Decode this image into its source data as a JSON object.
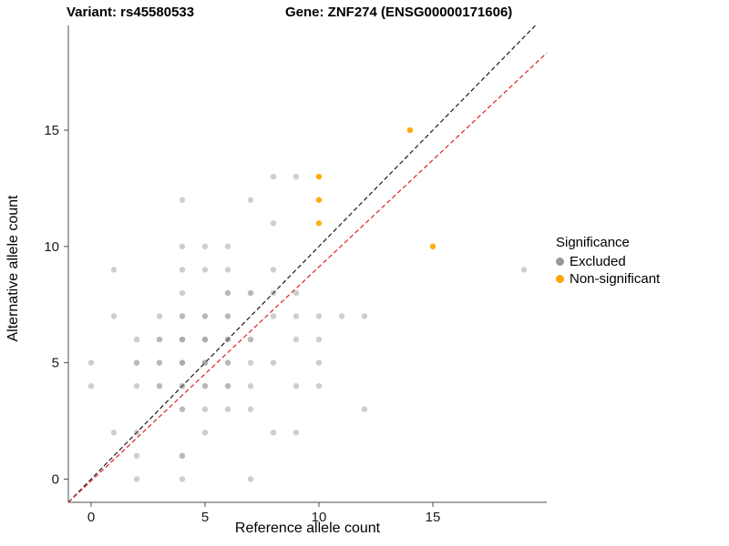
{
  "header": {
    "variant_title": "Variant: rs45580533",
    "gene_title": "Gene: ZNF274 (ENSG00000171606)"
  },
  "axes": {
    "x_label": "Reference allele count",
    "y_label": "Alternative allele count"
  },
  "legend": {
    "title": "Significance",
    "items": [
      {
        "label": "Excluded",
        "color": "#999999"
      },
      {
        "label": "Non-significant",
        "color": "#FFA500"
      }
    ]
  },
  "chart_data": {
    "type": "scatter",
    "title": "",
    "xlabel": "Reference allele count",
    "ylabel": "Alternative allele count",
    "xlim": [
      -1,
      20
    ],
    "ylim": [
      -1,
      19.5
    ],
    "x_ticks": [
      0,
      5,
      10,
      15
    ],
    "y_ticks": [
      0,
      5,
      10,
      15
    ],
    "grid": false,
    "legend_position": "right",
    "series": [
      {
        "name": "Excluded",
        "color": "#737373",
        "points": [
          [
            2,
            0,
            0.35
          ],
          [
            4,
            0,
            0.35
          ],
          [
            7,
            0,
            0.35
          ],
          [
            2,
            1,
            0.35
          ],
          [
            4,
            1,
            0.5
          ],
          [
            1,
            2,
            0.35
          ],
          [
            2,
            2,
            0.35
          ],
          [
            5,
            2,
            0.35
          ],
          [
            8,
            2,
            0.35
          ],
          [
            9,
            2,
            0.35
          ],
          [
            4,
            3,
            0.5
          ],
          [
            5,
            3,
            0.35
          ],
          [
            6,
            3,
            0.35
          ],
          [
            7,
            3,
            0.35
          ],
          [
            12,
            3,
            0.35
          ],
          [
            0,
            4,
            0.35
          ],
          [
            2,
            4,
            0.35
          ],
          [
            3,
            4,
            0.5
          ],
          [
            4,
            4,
            0.5
          ],
          [
            5,
            4,
            0.5
          ],
          [
            6,
            4,
            0.5
          ],
          [
            7,
            4,
            0.35
          ],
          [
            9,
            4,
            0.35
          ],
          [
            10,
            4,
            0.35
          ],
          [
            0,
            5,
            0.35
          ],
          [
            2,
            5,
            0.5
          ],
          [
            3,
            5,
            0.5
          ],
          [
            4,
            5,
            0.6
          ],
          [
            5,
            5,
            0.6
          ],
          [
            6,
            5,
            0.5
          ],
          [
            7,
            5,
            0.35
          ],
          [
            8,
            5,
            0.35
          ],
          [
            10,
            5,
            0.35
          ],
          [
            2,
            6,
            0.35
          ],
          [
            3,
            6,
            0.5
          ],
          [
            4,
            6,
            0.6
          ],
          [
            5,
            6,
            0.6
          ],
          [
            6,
            6,
            0.6
          ],
          [
            7,
            6,
            0.5
          ],
          [
            9,
            6,
            0.35
          ],
          [
            10,
            6,
            0.35
          ],
          [
            1,
            7,
            0.35
          ],
          [
            3,
            7,
            0.35
          ],
          [
            4,
            7,
            0.5
          ],
          [
            5,
            7,
            0.5
          ],
          [
            6,
            7,
            0.5
          ],
          [
            8,
            7,
            0.35
          ],
          [
            9,
            7,
            0.35
          ],
          [
            10,
            7,
            0.35
          ],
          [
            11,
            7,
            0.35
          ],
          [
            12,
            7,
            0.35
          ],
          [
            4,
            8,
            0.35
          ],
          [
            6,
            8,
            0.5
          ],
          [
            7,
            8,
            0.5
          ],
          [
            8,
            8,
            0.35
          ],
          [
            9,
            8,
            0.35
          ],
          [
            1,
            9,
            0.35
          ],
          [
            4,
            9,
            0.35
          ],
          [
            5,
            9,
            0.35
          ],
          [
            6,
            9,
            0.35
          ],
          [
            8,
            9,
            0.35
          ],
          [
            19,
            9,
            0.35
          ],
          [
            4,
            10,
            0.35
          ],
          [
            5,
            10,
            0.35
          ],
          [
            6,
            10,
            0.35
          ],
          [
            8,
            11,
            0.35
          ],
          [
            4,
            12,
            0.35
          ],
          [
            7,
            12,
            0.35
          ],
          [
            8,
            13,
            0.35
          ],
          [
            9,
            13,
            0.35
          ]
        ]
      },
      {
        "name": "Non-significant",
        "color": "#FFA500",
        "points": [
          [
            10,
            11,
            0.9
          ],
          [
            10,
            12,
            0.95
          ],
          [
            10,
            13,
            0.95
          ],
          [
            14,
            15,
            0.95
          ],
          [
            15,
            10,
            0.95
          ]
        ]
      }
    ],
    "lines": [
      {
        "name": "identity",
        "slope": 1,
        "intercept": 0,
        "color": "#1a1a1a",
        "dash": "5 3"
      },
      {
        "name": "fit",
        "slope": 0.92,
        "intercept": -0.08,
        "color": "#e02020",
        "dash": "5 3"
      }
    ]
  }
}
